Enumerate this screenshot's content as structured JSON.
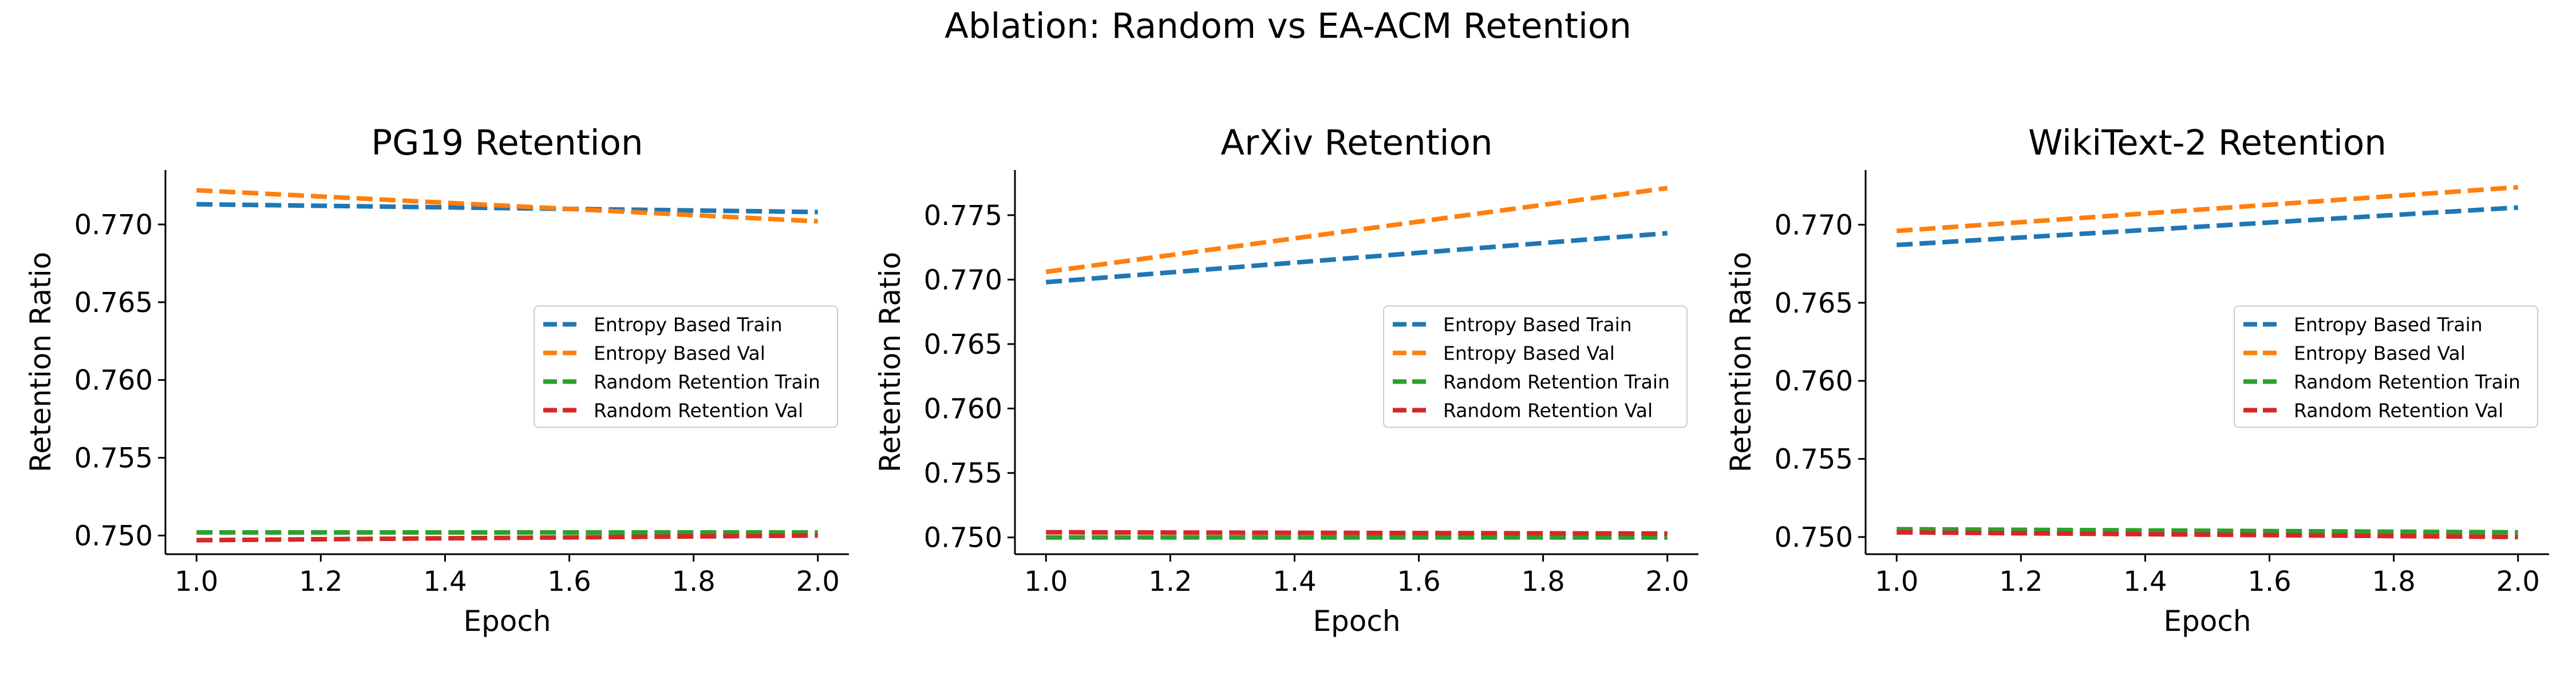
{
  "title": "Ablation: Random vs EA-ACM Retention",
  "colors": {
    "entropy_train": "#1f77b4",
    "entropy_val": "#ff7f0e",
    "random_train": "#2ca02c",
    "random_val": "#d62728"
  },
  "chart_data": [
    {
      "type": "line",
      "title": "PG19 Retention",
      "xlabel": "Epoch",
      "ylabel": "Retention Ratio",
      "xlim": [
        0.95,
        2.05
      ],
      "ylim": [
        0.7488,
        0.7735
      ],
      "xticks": [
        "1.0",
        "1.2",
        "1.4",
        "1.6",
        "1.8",
        "2.0"
      ],
      "yticks": [
        "0.750",
        "0.755",
        "0.760",
        "0.765",
        "0.770"
      ],
      "legend_position": "center-right",
      "grid": false,
      "series": [
        {
          "name": "Entropy Based Train",
          "color": "#1f77b4",
          "x": [
            1.0,
            2.0
          ],
          "y": [
            0.7713,
            0.7708
          ]
        },
        {
          "name": "Entropy Based Val",
          "color": "#ff7f0e",
          "x": [
            1.0,
            2.0
          ],
          "y": [
            0.7722,
            0.7702
          ]
        },
        {
          "name": "Random Retention Train",
          "color": "#2ca02c",
          "x": [
            1.0,
            2.0
          ],
          "y": [
            0.7502,
            0.7502
          ]
        },
        {
          "name": "Random Retention Val",
          "color": "#d62728",
          "x": [
            1.0,
            2.0
          ],
          "y": [
            0.7497,
            0.75
          ]
        }
      ]
    },
    {
      "type": "line",
      "title": "ArXiv Retention",
      "xlabel": "Epoch",
      "ylabel": "Retention Ratio",
      "xlim": [
        0.95,
        2.05
      ],
      "ylim": [
        0.7487,
        0.7785
      ],
      "xticks": [
        "1.0",
        "1.2",
        "1.4",
        "1.6",
        "1.8",
        "2.0"
      ],
      "yticks": [
        "0.750",
        "0.755",
        "0.760",
        "0.765",
        "0.770",
        "0.775"
      ],
      "legend_position": "center-right",
      "grid": false,
      "series": [
        {
          "name": "Entropy Based Train",
          "color": "#1f77b4",
          "x": [
            1.0,
            2.0
          ],
          "y": [
            0.7698,
            0.7736
          ]
        },
        {
          "name": "Entropy Based Val",
          "color": "#ff7f0e",
          "x": [
            1.0,
            2.0
          ],
          "y": [
            0.7706,
            0.7771
          ]
        },
        {
          "name": "Random Retention Train",
          "color": "#2ca02c",
          "x": [
            1.0,
            2.0
          ],
          "y": [
            0.75,
            0.75
          ]
        },
        {
          "name": "Random Retention Val",
          "color": "#d62728",
          "x": [
            1.0,
            2.0
          ],
          "y": [
            0.7504,
            0.7503
          ]
        }
      ]
    },
    {
      "type": "line",
      "title": "WikiText-2 Retention",
      "xlabel": "Epoch",
      "ylabel": "Retention Ratio",
      "xlim": [
        0.95,
        2.05
      ],
      "ylim": [
        0.7489,
        0.7735
      ],
      "xticks": [
        "1.0",
        "1.2",
        "1.4",
        "1.6",
        "1.8",
        "2.0"
      ],
      "yticks": [
        "0.750",
        "0.755",
        "0.760",
        "0.765",
        "0.770"
      ],
      "legend_position": "center-right",
      "grid": false,
      "series": [
        {
          "name": "Entropy Based Train",
          "color": "#1f77b4",
          "x": [
            1.0,
            2.0
          ],
          "y": [
            0.7687,
            0.7711
          ]
        },
        {
          "name": "Entropy Based Val",
          "color": "#ff7f0e",
          "x": [
            1.0,
            2.0
          ],
          "y": [
            0.7696,
            0.7724
          ]
        },
        {
          "name": "Random Retention Train",
          "color": "#2ca02c",
          "x": [
            1.0,
            2.0
          ],
          "y": [
            0.7505,
            0.7503
          ]
        },
        {
          "name": "Random Retention Val",
          "color": "#d62728",
          "x": [
            1.0,
            2.0
          ],
          "y": [
            0.7503,
            0.75
          ]
        }
      ]
    }
  ]
}
